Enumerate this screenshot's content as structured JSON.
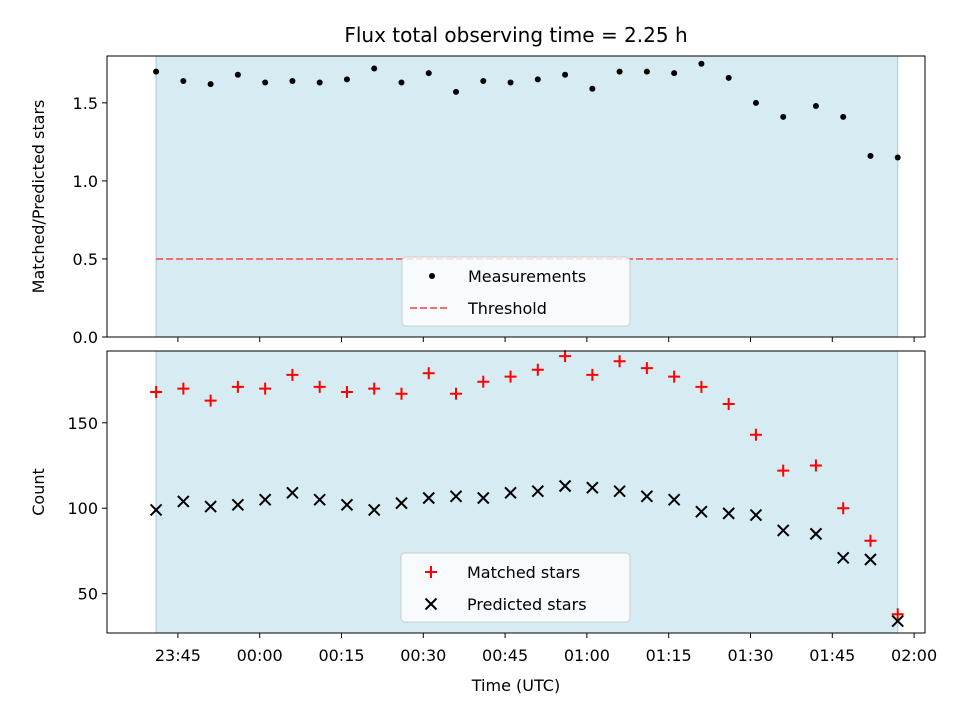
{
  "figure": {
    "title": "Flux total observing time = 2.25 h",
    "xlabel": "Time (UTC)",
    "xticks": [
      "23:45",
      "00:00",
      "00:15",
      "00:30",
      "00:45",
      "01:00",
      "01:15",
      "01:30",
      "01:45",
      "02:00"
    ]
  },
  "chart_data": [
    {
      "type": "scatter",
      "ylabel": "Matched/Predicted stars",
      "ylim": [
        0,
        1.8
      ],
      "yticks": [
        "0.0",
        "0.5",
        "1.0",
        "1.5"
      ],
      "shaded_span": [
        "23:41",
        "01:57"
      ],
      "shade_color": "#add8e6",
      "legend": {
        "placement": "lower center",
        "entries": [
          "Measurements",
          "Threshold"
        ]
      },
      "threshold": {
        "name": "Threshold",
        "value": 0.5,
        "color": "#f07070",
        "style": "dashed"
      },
      "series": [
        {
          "name": "Measurements",
          "color": "#000000",
          "marker": "dot",
          "x": [
            "23:41",
            "23:46",
            "23:51",
            "23:56",
            "00:01",
            "00:06",
            "00:11",
            "00:16",
            "00:21",
            "00:26",
            "00:31",
            "00:36",
            "00:41",
            "00:46",
            "00:51",
            "00:56",
            "01:01",
            "01:06",
            "01:11",
            "01:16",
            "01:21",
            "01:26",
            "01:31",
            "01:36",
            "01:42",
            "01:47",
            "01:52",
            "01:57"
          ],
          "values": [
            1.7,
            1.64,
            1.62,
            1.68,
            1.63,
            1.64,
            1.63,
            1.65,
            1.72,
            1.63,
            1.69,
            1.57,
            1.64,
            1.63,
            1.65,
            1.68,
            1.59,
            1.7,
            1.7,
            1.69,
            1.75,
            1.66,
            1.5,
            1.41,
            1.48,
            1.41,
            1.16,
            1.15
          ]
        }
      ]
    },
    {
      "type": "scatter",
      "ylabel": "Count",
      "ylim": [
        27,
        192
      ],
      "yticks": [
        "50",
        "100",
        "150"
      ],
      "shaded_span": [
        "23:41",
        "01:57"
      ],
      "shade_color": "#add8e6",
      "legend": {
        "placement": "lower center",
        "entries": [
          "Matched stars",
          "Predicted stars"
        ]
      },
      "series": [
        {
          "name": "Matched stars",
          "color": "#ff0000",
          "marker": "plus",
          "x": [
            "23:41",
            "23:46",
            "23:51",
            "23:56",
            "00:01",
            "00:06",
            "00:11",
            "00:16",
            "00:21",
            "00:26",
            "00:31",
            "00:36",
            "00:41",
            "00:46",
            "00:51",
            "00:56",
            "01:01",
            "01:06",
            "01:11",
            "01:16",
            "01:21",
            "01:26",
            "01:31",
            "01:36",
            "01:42",
            "01:47",
            "01:52",
            "01:57"
          ],
          "values": [
            168,
            170,
            163,
            171,
            170,
            178,
            171,
            168,
            170,
            167,
            179,
            167,
            174,
            177,
            181,
            189,
            178,
            186,
            182,
            177,
            171,
            161,
            143,
            122,
            125,
            100,
            81,
            38
          ]
        },
        {
          "name": "Predicted stars",
          "color": "#000000",
          "marker": "x",
          "x": [
            "23:41",
            "23:46",
            "23:51",
            "23:56",
            "00:01",
            "00:06",
            "00:11",
            "00:16",
            "00:21",
            "00:26",
            "00:31",
            "00:36",
            "00:41",
            "00:46",
            "00:51",
            "00:56",
            "01:01",
            "01:06",
            "01:11",
            "01:16",
            "01:21",
            "01:26",
            "01:31",
            "01:36",
            "01:42",
            "01:47",
            "01:52",
            "01:57"
          ],
          "values": [
            99,
            104,
            101,
            102,
            105,
            109,
            105,
            102,
            99,
            103,
            106,
            107,
            106,
            109,
            110,
            113,
            112,
            110,
            107,
            105,
            98,
            97,
            96,
            87,
            85,
            71,
            70,
            34
          ]
        }
      ]
    }
  ]
}
